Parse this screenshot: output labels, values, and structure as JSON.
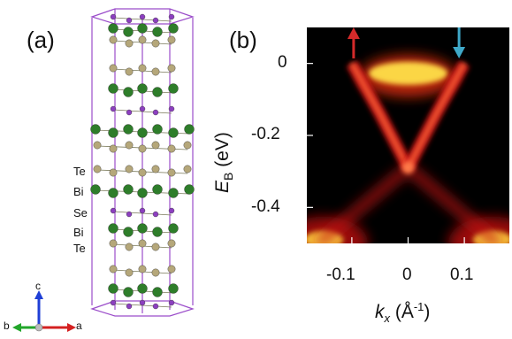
{
  "panel_a": {
    "label": "(a)",
    "layer_labels": [
      "Te",
      "Bi",
      "Se",
      "Bi",
      "Te"
    ],
    "axes": {
      "c": "c",
      "b": "b",
      "a": "a"
    },
    "colors": {
      "bi": "#2e7d2a",
      "te": "#b5a77a",
      "se": "#8c3fbf",
      "cell": "#9b4dca",
      "axis_c": "#1f3fd6",
      "axis_a": "#d42020",
      "axis_b": "#22a62a"
    }
  },
  "panel_b": {
    "label": "(b)",
    "ylabel_main": "E",
    "ylabel_sub": "B",
    "ylabel_unit": " (eV)",
    "xlabel_main": "k",
    "xlabel_sub": "x",
    "xlabel_unit": " (Å",
    "xlabel_exp": "-1",
    "xlabel_close": ")",
    "arrow_colors": {
      "left": "#d42a2a",
      "right": "#3fa8c8"
    }
  },
  "chart_data": {
    "type": "heatmap",
    "title": "",
    "xlabel": "kx (Å-1)",
    "ylabel": "EB (eV)",
    "xlim": [
      -0.18,
      0.18
    ],
    "ylim": [
      -0.5,
      0.1
    ],
    "x_ticks": [
      "-0.1",
      "0",
      "0.1"
    ],
    "x_tick_values": [
      -0.1,
      0,
      0.1
    ],
    "y_ticks": [
      "0",
      "-0.2",
      "-0.4"
    ],
    "y_tick_values": [
      0,
      -0.2,
      -0.4
    ],
    "dirac_point": {
      "kx": 0.0,
      "eb": -0.29
    },
    "surface_state_branches": [
      {
        "name": "",
        "points": [
          [
            -0.1,
            0.0
          ],
          [
            -0.05,
            -0.14
          ],
          [
            0.0,
            -0.29
          ]
        ]
      },
      {
        "name": "",
        "points": [
          [
            0.1,
            0.0
          ],
          [
            0.05,
            -0.14
          ],
          [
            0.0,
            -0.29
          ]
        ]
      }
    ],
    "conduction_band_pocket": {
      "kx_range": [
        -0.07,
        0.07
      ],
      "eb_range": [
        -0.06,
        0.0
      ]
    },
    "valence_band_edges": [
      {
        "kx": -0.15,
        "eb": -0.47
      },
      {
        "kx": 0.15,
        "eb": -0.47
      }
    ],
    "arrows": [
      {
        "kx": -0.1,
        "color": "red"
      },
      {
        "kx": 0.1,
        "color": "cyan"
      }
    ],
    "colormap": "black-red-yellow"
  }
}
